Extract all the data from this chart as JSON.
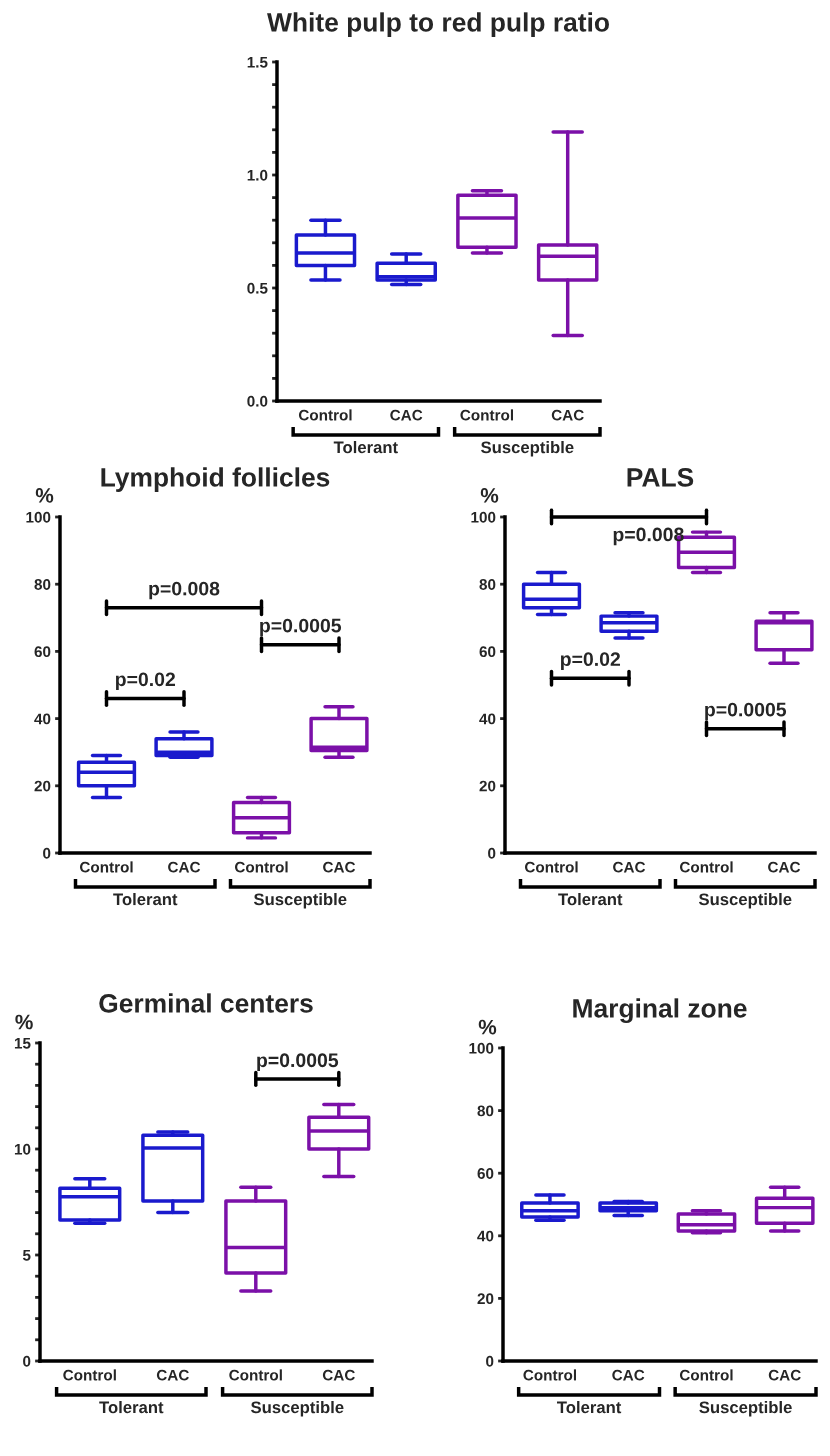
{
  "chart_data": [
    {
      "type": "box",
      "title": "White pulp to red pulp ratio",
      "categories": [
        "Control",
        "CAC",
        "Control",
        "CAC"
      ],
      "ylim": [
        0,
        1.5
      ],
      "yticks": [
        {
          "value": 0,
          "label": "0.0"
        },
        {
          "value": 0.1,
          "label": null
        },
        {
          "value": 0.2,
          "label": null
        },
        {
          "value": 0.3,
          "label": null
        },
        {
          "value": 0.4,
          "label": null
        },
        {
          "value": 0.5,
          "label": "0.5"
        },
        {
          "value": 0.6,
          "label": null
        },
        {
          "value": 0.7,
          "label": null
        },
        {
          "value": 0.8,
          "label": null
        },
        {
          "value": 0.9,
          "label": null
        },
        {
          "value": 1.0,
          "label": "1.0"
        },
        {
          "value": 1.1,
          "label": null
        },
        {
          "value": 1.2,
          "label": null
        },
        {
          "value": 1.3,
          "label": null
        },
        {
          "value": 1.4,
          "label": null
        },
        {
          "value": 1.5,
          "label": "1.5"
        }
      ],
      "colors": [
        "#1a1acd",
        "#1a1acd",
        "#7b10a8",
        "#7b10a8"
      ],
      "boxes": [
        {
          "low": 0.535,
          "q1": 0.6,
          "median": 0.655,
          "q3": 0.735,
          "high": 0.8
        },
        {
          "low": 0.515,
          "q1": 0.535,
          "median": 0.55,
          "q3": 0.61,
          "high": 0.65
        },
        {
          "low": 0.655,
          "q1": 0.68,
          "median": 0.81,
          "q3": 0.91,
          "high": 0.93
        },
        {
          "low": 0.29,
          "q1": 0.535,
          "median": 0.64,
          "q3": 0.69,
          "high": 1.19
        }
      ],
      "annotations": [
        "Tolerant",
        "Susceptible"
      ]
    },
    {
      "type": "box",
      "title": "Lymphoid follicles",
      "ylabel": "%",
      "categories": [
        "Control",
        "CAC",
        "Control",
        "CAC"
      ],
      "ylim": [
        0,
        100
      ],
      "yticks": [
        0,
        20,
        40,
        60,
        80,
        100
      ],
      "colors": [
        "#1a1acd",
        "#1a1acd",
        "#7b10a8",
        "#7b10a8"
      ],
      "boxes": [
        {
          "low": 16.5,
          "q1": 20,
          "median": 24,
          "q3": 27,
          "high": 29
        },
        {
          "low": 28.5,
          "q1": 29,
          "median": 30,
          "q3": 34,
          "high": 36
        },
        {
          "low": 4.5,
          "q1": 6,
          "median": 10.5,
          "q3": 15,
          "high": 16.5
        },
        {
          "low": 28.5,
          "q1": 30.5,
          "median": 31.5,
          "q3": 40,
          "high": 43.5
        }
      ],
      "annotations": [
        "Tolerant",
        "Susceptible",
        "p=0.008",
        "p=0.02",
        "p=0.0005"
      ]
    },
    {
      "type": "box",
      "title": "PALS",
      "ylabel": "%",
      "categories": [
        "Control",
        "CAC",
        "Control",
        "CAC"
      ],
      "ylim": [
        0,
        100
      ],
      "yticks": [
        0,
        20,
        40,
        60,
        80,
        100
      ],
      "colors": [
        "#1a1acd",
        "#1a1acd",
        "#7b10a8",
        "#7b10a8"
      ],
      "boxes": [
        {
          "low": 71,
          "q1": 73,
          "median": 75.5,
          "q3": 80,
          "high": 83.5
        },
        {
          "low": 64,
          "q1": 66,
          "median": 68.5,
          "q3": 70.5,
          "high": 71.5
        },
        {
          "low": 83.5,
          "q1": 85,
          "median": 89.5,
          "q3": 94,
          "high": 95.5
        },
        {
          "low": 56.5,
          "q1": 60.5,
          "median": 68.5,
          "q3": 69,
          "high": 71.5
        }
      ],
      "annotations": [
        "Tolerant",
        "Susceptible",
        "p=0.008",
        "p=0.02",
        "p=0.0005"
      ]
    },
    {
      "type": "box",
      "title": "Germinal centers",
      "ylabel": "%",
      "categories": [
        "Control",
        "CAC",
        "Control",
        "CAC"
      ],
      "ylim": [
        0,
        15
      ],
      "yticks": [
        0,
        {
          "value": 1,
          "label": null
        },
        {
          "value": 2,
          "label": null
        },
        {
          "value": 3,
          "label": null
        },
        {
          "value": 4,
          "label": null
        },
        5,
        {
          "value": 6,
          "label": null
        },
        {
          "value": 7,
          "label": null
        },
        {
          "value": 8,
          "label": null
        },
        {
          "value": 9,
          "label": null
        },
        10,
        {
          "value": 11,
          "label": null
        },
        {
          "value": 12,
          "label": null
        },
        {
          "value": 13,
          "label": null
        },
        {
          "value": 14,
          "label": null
        },
        15
      ],
      "colors": [
        "#1a1acd",
        "#1a1acd",
        "#7b10a8",
        "#7b10a8"
      ],
      "boxes": [
        {
          "low": 6.5,
          "q1": 6.65,
          "median": 7.75,
          "q3": 8.15,
          "high": 8.6
        },
        {
          "low": 7.0,
          "q1": 7.55,
          "median": 10.05,
          "q3": 10.65,
          "high": 10.8
        },
        {
          "low": 3.3,
          "q1": 4.15,
          "median": 5.35,
          "q3": 7.55,
          "high": 8.2
        },
        {
          "low": 8.7,
          "q1": 10.0,
          "median": 10.85,
          "q3": 11.5,
          "high": 12.1
        }
      ],
      "annotations": [
        "Tolerant",
        "Susceptible",
        "p=0.0005"
      ]
    },
    {
      "type": "box",
      "title": "Marginal zone",
      "ylabel": "%",
      "categories": [
        "Control",
        "CAC",
        "Control",
        "CAC"
      ],
      "ylim": [
        0,
        100
      ],
      "yticks": [
        0,
        20,
        40,
        60,
        80,
        100
      ],
      "colors": [
        "#1a1acd",
        "#1a1acd",
        "#7b10a8",
        "#7b10a8"
      ],
      "boxes": [
        {
          "low": 45,
          "q1": 46,
          "median": 48,
          "q3": 50.5,
          "high": 53
        },
        {
          "low": 46.5,
          "q1": 48,
          "median": 49,
          "q3": 50.5,
          "high": 51
        },
        {
          "low": 41,
          "q1": 41.5,
          "median": 43.5,
          "q3": 47,
          "high": 48
        },
        {
          "low": 41.5,
          "q1": 44,
          "median": 49,
          "q3": 52,
          "high": 55.5
        }
      ],
      "annotations": [
        "Tolerant",
        "Susceptible"
      ]
    }
  ]
}
